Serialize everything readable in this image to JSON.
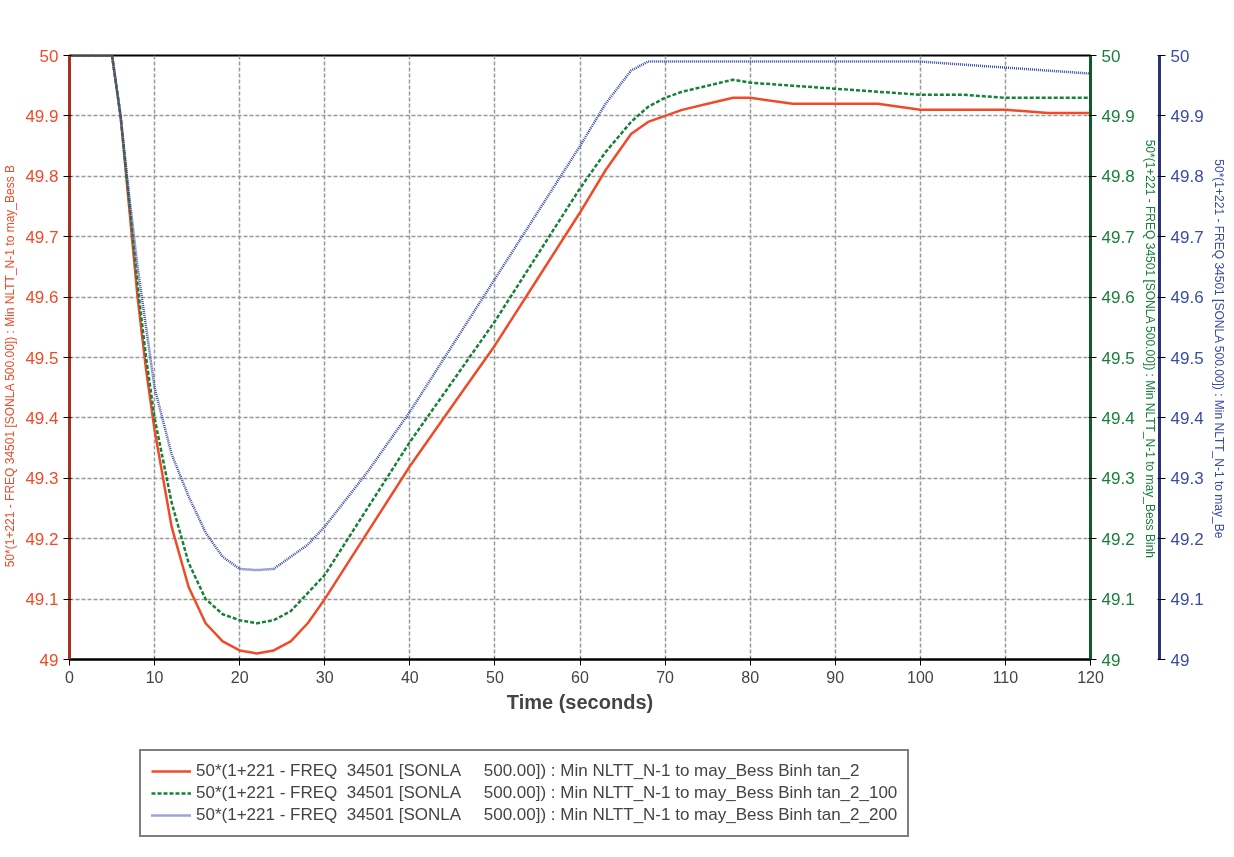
{
  "chart_data": {
    "type": "line",
    "xlabel": "Time (seconds)",
    "ylabel": "50*(1+221 - FREQ  34501 [SONLA     500.00]) : Min NLTT_N-1 to may_Bess B",
    "y2label": "50*(1+221 - FREQ  34501 [SONLA     500.00]) : Min NLTT_N-1 to may_Bess Binh",
    "y3label": "50*(1+221 - FREQ  34501 [SONLA     500.00]) : Min NLTT_N-1 to may_Be",
    "xlim": [
      0,
      120
    ],
    "xticks": [
      0,
      10,
      20,
      30,
      40,
      50,
      60,
      70,
      80,
      90,
      100,
      110,
      120
    ],
    "ylim": [
      49,
      50
    ],
    "yticks": [
      49,
      49.1,
      49.2,
      49.3,
      49.4,
      49.5,
      49.6,
      49.7,
      49.8,
      49.9,
      50
    ],
    "y2lim": [
      49,
      50
    ],
    "y2ticks": [
      49,
      49.1,
      49.2,
      49.3,
      49.4,
      49.5,
      49.6,
      49.7,
      49.8,
      49.9,
      50
    ],
    "y3lim": [
      49,
      50
    ],
    "y3ticks": [
      49,
      49.1,
      49.2,
      49.3,
      49.4,
      49.5,
      49.6,
      49.7,
      49.8,
      49.9,
      50
    ],
    "grid": true,
    "legend": "bottom",
    "marker": "none",
    "x": [
      0,
      5,
      6,
      7,
      8,
      9,
      10,
      12,
      14,
      16,
      18,
      20,
      22,
      24,
      26,
      28,
      30,
      35,
      40,
      45,
      50,
      55,
      60,
      63,
      66,
      68,
      70,
      72,
      75,
      78,
      80,
      85,
      90,
      95,
      100,
      105,
      110,
      115,
      120
    ],
    "series": [
      {
        "name": "50*(1+221 - FREQ  34501 [SONLA     500.00]) : Min NLTT_N-1 to may_Bess Binh tan_2",
        "color": "#f04a28",
        "line_style": "solid",
        "values": [
          50,
          50,
          49.9,
          49.75,
          49.6,
          49.48,
          49.38,
          49.22,
          49.12,
          49.06,
          49.03,
          49.015,
          49.01,
          49.015,
          49.03,
          49.06,
          49.1,
          49.21,
          49.32,
          49.42,
          49.52,
          49.63,
          49.74,
          49.81,
          49.87,
          49.89,
          49.9,
          49.91,
          49.92,
          49.93,
          49.93,
          49.92,
          49.92,
          49.92,
          49.91,
          49.91,
          49.91,
          49.905,
          49.905
        ]
      },
      {
        "name": "50*(1+221 - FREQ  34501 [SONLA     500.00]) : Min NLTT_N-1 to may_Bess Binh tan_2_100",
        "color": "#17803a",
        "line_style": "dashed",
        "axis": "y2",
        "values": [
          50,
          50,
          49.9,
          49.76,
          49.62,
          49.5,
          49.4,
          49.26,
          49.16,
          49.1,
          49.075,
          49.065,
          49.06,
          49.065,
          49.08,
          49.11,
          49.14,
          49.25,
          49.36,
          49.46,
          49.56,
          49.67,
          49.78,
          49.84,
          49.89,
          49.915,
          49.93,
          49.94,
          49.95,
          49.96,
          49.955,
          49.95,
          49.945,
          49.94,
          49.935,
          49.935,
          49.93,
          49.93,
          49.93
        ]
      },
      {
        "name": "50*(1+221 - FREQ  34501 [SONLA     500.00]) : Min NLTT_N-1 to may_Bess Binh tan_2_200",
        "color": "#3a4ba6",
        "line_style": "dotted",
        "axis": "y3",
        "values": [
          50,
          50,
          49.9,
          49.77,
          49.65,
          49.55,
          49.45,
          49.34,
          49.27,
          49.21,
          49.17,
          49.15,
          49.148,
          49.15,
          49.17,
          49.19,
          49.22,
          49.31,
          49.41,
          49.52,
          49.63,
          49.74,
          49.85,
          49.92,
          49.975,
          49.99,
          49.99,
          49.99,
          49.99,
          49.99,
          49.99,
          49.99,
          49.99,
          49.99,
          49.99,
          49.985,
          49.98,
          49.975,
          49.97
        ]
      }
    ]
  }
}
